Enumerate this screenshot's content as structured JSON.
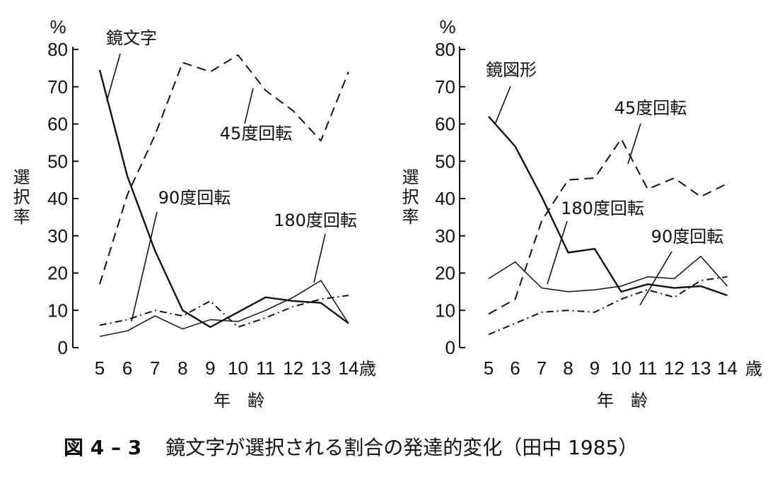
{
  "caption": {
    "number": "図 4 – 3",
    "text": "鏡文字が選択される割合の発達的変化（田中 1985）"
  },
  "chart_data": [
    {
      "type": "line",
      "title": "",
      "xlabel": "年　齢",
      "ylabel": "選択率",
      "y_unit": "%",
      "x_unit": "歳",
      "x": [
        5,
        6,
        7,
        8,
        9,
        10,
        11,
        12,
        13,
        14
      ],
      "ylim": [
        0,
        80
      ],
      "yticks": [
        0,
        10,
        20,
        30,
        40,
        50,
        60,
        70,
        80
      ],
      "series": [
        {
          "name": "鏡文字",
          "style": "solid",
          "values": [
            74.5,
            46,
            26,
            10,
            5.5,
            9.5,
            13.5,
            12.5,
            12,
            6.5
          ]
        },
        {
          "name": "45度回転",
          "style": "dashed",
          "values": [
            17,
            41,
            57,
            76.5,
            74,
            78.5,
            69,
            63.5,
            55.5,
            74
          ]
        },
        {
          "name": "90度回転",
          "style": "dashdot",
          "values": [
            6,
            7.5,
            10,
            8.5,
            12.5,
            5.5,
            8,
            11,
            13,
            14
          ]
        },
        {
          "name": "180度回転",
          "style": "thin",
          "values": [
            3,
            4.5,
            8.5,
            5,
            7.5,
            7,
            10,
            13.5,
            18,
            6.5
          ]
        }
      ]
    },
    {
      "type": "line",
      "title": "",
      "xlabel": "年　齢",
      "ylabel": "選択率",
      "y_unit": "%",
      "x_unit": "歳",
      "x": [
        5,
        6,
        7,
        8,
        9,
        10,
        11,
        12,
        13,
        14
      ],
      "ylim": [
        0,
        80
      ],
      "yticks": [
        0,
        10,
        20,
        30,
        40,
        50,
        60,
        70,
        80
      ],
      "series": [
        {
          "name": "鏡図形",
          "style": "solid",
          "values": [
            62,
            54,
            40.5,
            25.5,
            26.5,
            15,
            17,
            16,
            16.5,
            14
          ]
        },
        {
          "name": "45度回転",
          "style": "dashed",
          "values": [
            9,
            13,
            34,
            45,
            45.5,
            56,
            42.5,
            45.5,
            40.5,
            44
          ]
        },
        {
          "name": "180度回転",
          "style": "thin",
          "values": [
            18.5,
            23,
            16,
            15,
            15.5,
            16.5,
            19,
            18.5,
            24.5,
            16.5
          ]
        },
        {
          "name": "90度回転",
          "style": "dashdot",
          "values": [
            3.5,
            6.5,
            9.5,
            10,
            9.5,
            13,
            15.5,
            13.5,
            18,
            19
          ]
        }
      ]
    }
  ]
}
